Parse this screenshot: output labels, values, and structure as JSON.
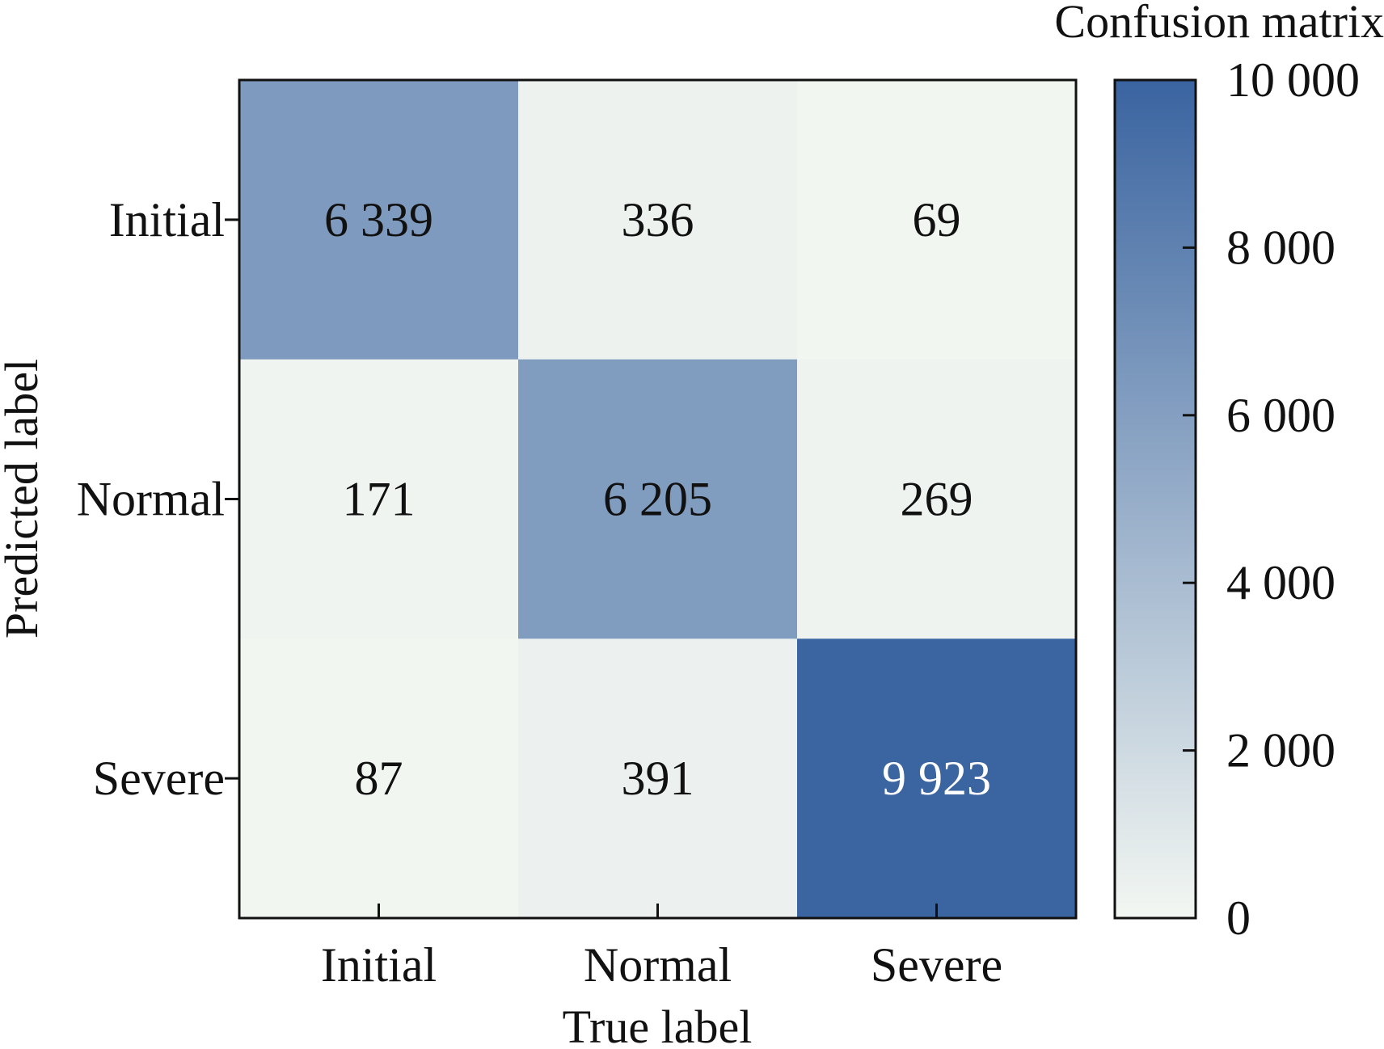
{
  "chart_data": {
    "type": "heatmap",
    "title": "Confusion matrix",
    "xlabel": "True label",
    "ylabel": "Predicted label",
    "x_categories": [
      "Initial",
      "Normal",
      "Severe"
    ],
    "y_categories": [
      "Initial",
      "Normal",
      "Severe"
    ],
    "matrix": [
      [
        6339,
        336,
        69
      ],
      [
        171,
        6205,
        269
      ],
      [
        87,
        391,
        9923
      ]
    ],
    "cell_labels": [
      [
        "6 339",
        "336",
        "69"
      ],
      [
        "171",
        "6 205",
        "269"
      ],
      [
        "87",
        "391",
        "9 923"
      ]
    ],
    "colorbar": {
      "range": [
        0,
        10000
      ],
      "ticks": [
        0,
        2000,
        4000,
        6000,
        8000,
        10000
      ],
      "tick_labels": [
        "0",
        "2 000",
        "4 000",
        "6 000",
        "8 000",
        "10 000"
      ],
      "color_low": "#f3f7f2",
      "color_high": "#3a64a0"
    },
    "text_color_dark": "#111111",
    "text_color_light": "#ffffff"
  }
}
